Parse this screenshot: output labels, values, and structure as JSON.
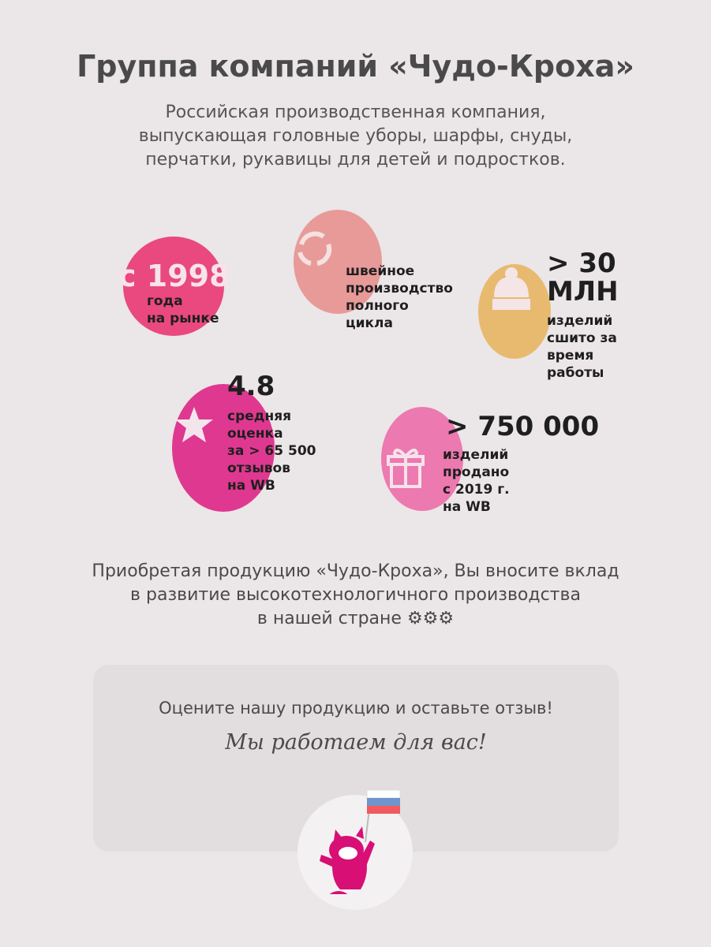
{
  "header": {
    "title": "Группа компаний «Чудо-Кроха»",
    "subtitle_lines": [
      "Российская производственная компания,",
      "выпускающая головные уборы, шарфы, снуды,",
      "перчатки, рукавицы для детей и подростков."
    ]
  },
  "stats": [
    {
      "value": "с 1998",
      "label_lines": [
        "года",
        "на рынке"
      ],
      "color": "#e9497f"
    },
    {
      "icon": "cycle-icon",
      "label_lines": [
        "швейное",
        "производство",
        "полного",
        "цикла"
      ],
      "color": "#e89a98"
    },
    {
      "value_lines": [
        "> 30",
        "МЛН"
      ],
      "icon": "hat-icon",
      "label_lines": [
        "изделий",
        "сшито за",
        "время",
        "работы"
      ],
      "color": "#e8ba70"
    },
    {
      "value": "4.8",
      "icon": "star-icon",
      "label_lines": [
        "средняя",
        "оценка",
        "за > 65 500",
        "отзывов",
        "на WB"
      ],
      "color": "#df3890"
    },
    {
      "value": "> 750 000",
      "icon": "gift-icon",
      "label_lines": [
        "изделий",
        "продано",
        "с 2019 г.",
        "на WB"
      ],
      "color": "#ec79b0"
    }
  ],
  "bottom_lines": [
    "Приобретая продукцию «Чудо-Кроха», Вы вносите вклад",
    "в развитие высокотехнологичного производства",
    "в нашей стране"
  ],
  "card": {
    "line1": "Оцените нашу продукцию и оставьте отзыв!",
    "line2": "Мы работаем для вас!"
  },
  "accent": "#d80f75"
}
